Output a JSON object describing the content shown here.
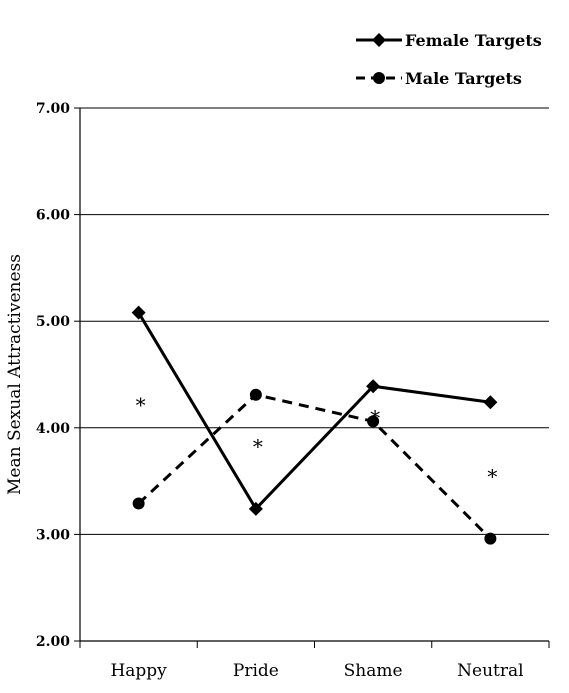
{
  "chart_data": {
    "type": "line",
    "title": "",
    "xlabel": "",
    "ylabel": "Mean Sexual Attractiveness",
    "ylim": [
      2.0,
      7.0
    ],
    "yticks": [
      "2.00",
      "3.00",
      "4.00",
      "5.00",
      "6.00",
      "7.00"
    ],
    "categories": [
      "Happy",
      "Pride",
      "Shame",
      "Neutral"
    ],
    "grid": "horizontal",
    "legend_position": "top-right",
    "series": [
      {
        "name": "Female Targets",
        "values": [
          5.08,
          3.24,
          4.39,
          4.24
        ],
        "marker": "diamond",
        "line_style": "solid",
        "color": "#000000"
      },
      {
        "name": "Male Targets",
        "values": [
          3.29,
          4.31,
          4.06,
          2.96
        ],
        "marker": "circle",
        "line_style": "dashed",
        "color": "#000000"
      }
    ],
    "annotations": [
      {
        "text": "*",
        "category": "Happy",
        "y": 4.28
      },
      {
        "text": "*",
        "category": "Pride",
        "y": 3.89
      },
      {
        "text": "*",
        "category": "Shame",
        "y": 4.16
      },
      {
        "text": "*",
        "category": "Neutral",
        "y": 3.61
      }
    ]
  }
}
